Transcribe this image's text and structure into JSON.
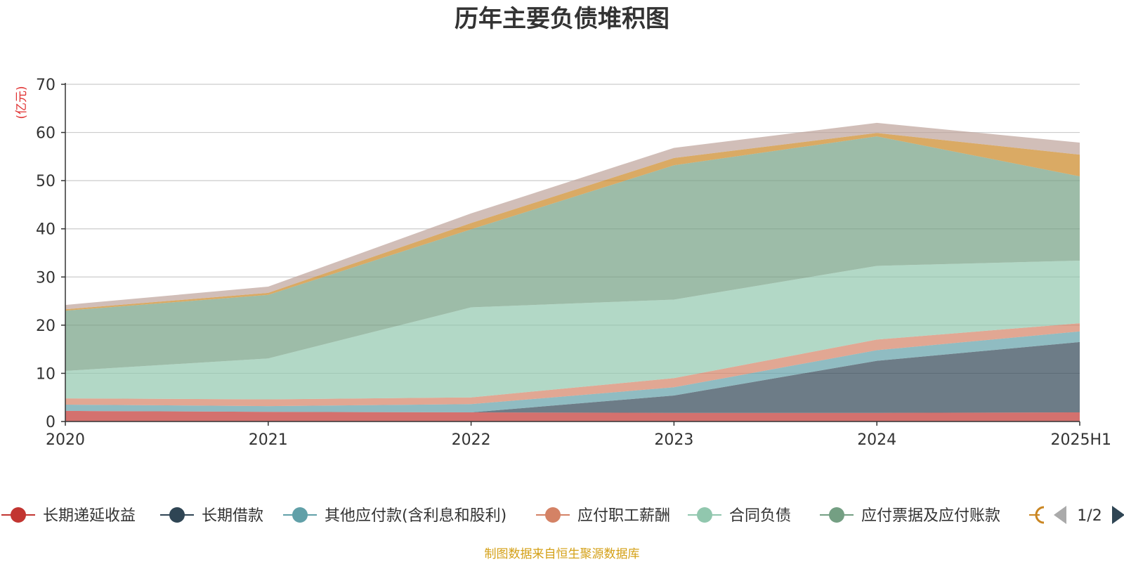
{
  "chart_data": {
    "type": "area",
    "stacked": true,
    "title": "历年主要负债堆积图",
    "unit_label": "(亿元)",
    "categories": [
      "2020",
      "2021",
      "2022",
      "2023",
      "2024",
      "2025H1"
    ],
    "y_ticks": [
      "0",
      "10",
      "20",
      "30",
      "40",
      "50",
      "60",
      "70"
    ],
    "ylim": [
      0,
      70
    ],
    "grid": true,
    "series": [
      {
        "name": "长期递延收益",
        "color": "#c23531",
        "values": [
          2.2,
          2.0,
          1.9,
          1.8,
          1.8,
          1.9
        ]
      },
      {
        "name": "长期借款",
        "color": "#2f4554",
        "values": [
          0.0,
          0.0,
          0.0,
          3.6,
          10.8,
          14.6
        ]
      },
      {
        "name": "其他应付款(含利息和股利)",
        "color": "#61a0a8",
        "values": [
          1.3,
          1.2,
          1.7,
          1.7,
          2.2,
          2.2
        ]
      },
      {
        "name": "应付职工薪酬",
        "color": "#d48265",
        "values": [
          1.3,
          1.4,
          1.4,
          1.9,
          2.2,
          1.7
        ]
      },
      {
        "name": "合同负债",
        "color": "#91c7ae",
        "values": [
          5.7,
          8.5,
          18.7,
          16.3,
          15.3,
          13.0
        ]
      },
      {
        "name": "应付票据及应付账款",
        "color": "#749f83",
        "values": [
          12.5,
          13.2,
          16.2,
          27.9,
          26.9,
          17.5
        ]
      },
      {
        "name": "",
        "color": "#ca8622",
        "values": [
          0.3,
          0.4,
          1.3,
          1.5,
          0.7,
          4.5
        ]
      },
      {
        "name": "",
        "color": "#bda29a",
        "values": [
          0.9,
          1.3,
          2.0,
          2.1,
          2.1,
          2.5
        ]
      }
    ],
    "legend": {
      "position": "bottom",
      "page_text": "1/2",
      "visible_items": [
        {
          "label": "长期递延收益",
          "color": "#c23531"
        },
        {
          "label": "长期借款",
          "color": "#2f4554"
        },
        {
          "label": "其他应付款(含利息和股利)",
          "color": "#61a0a8"
        },
        {
          "label": "应付职工薪酬",
          "color": "#d48265"
        },
        {
          "label": "合同负债",
          "color": "#91c7ae"
        },
        {
          "label": "应付票据及应付账款",
          "color": "#749f83"
        }
      ],
      "partial_item_color": "#ca8622"
    },
    "source_note": "制图数据来自恒生聚源数据库"
  }
}
